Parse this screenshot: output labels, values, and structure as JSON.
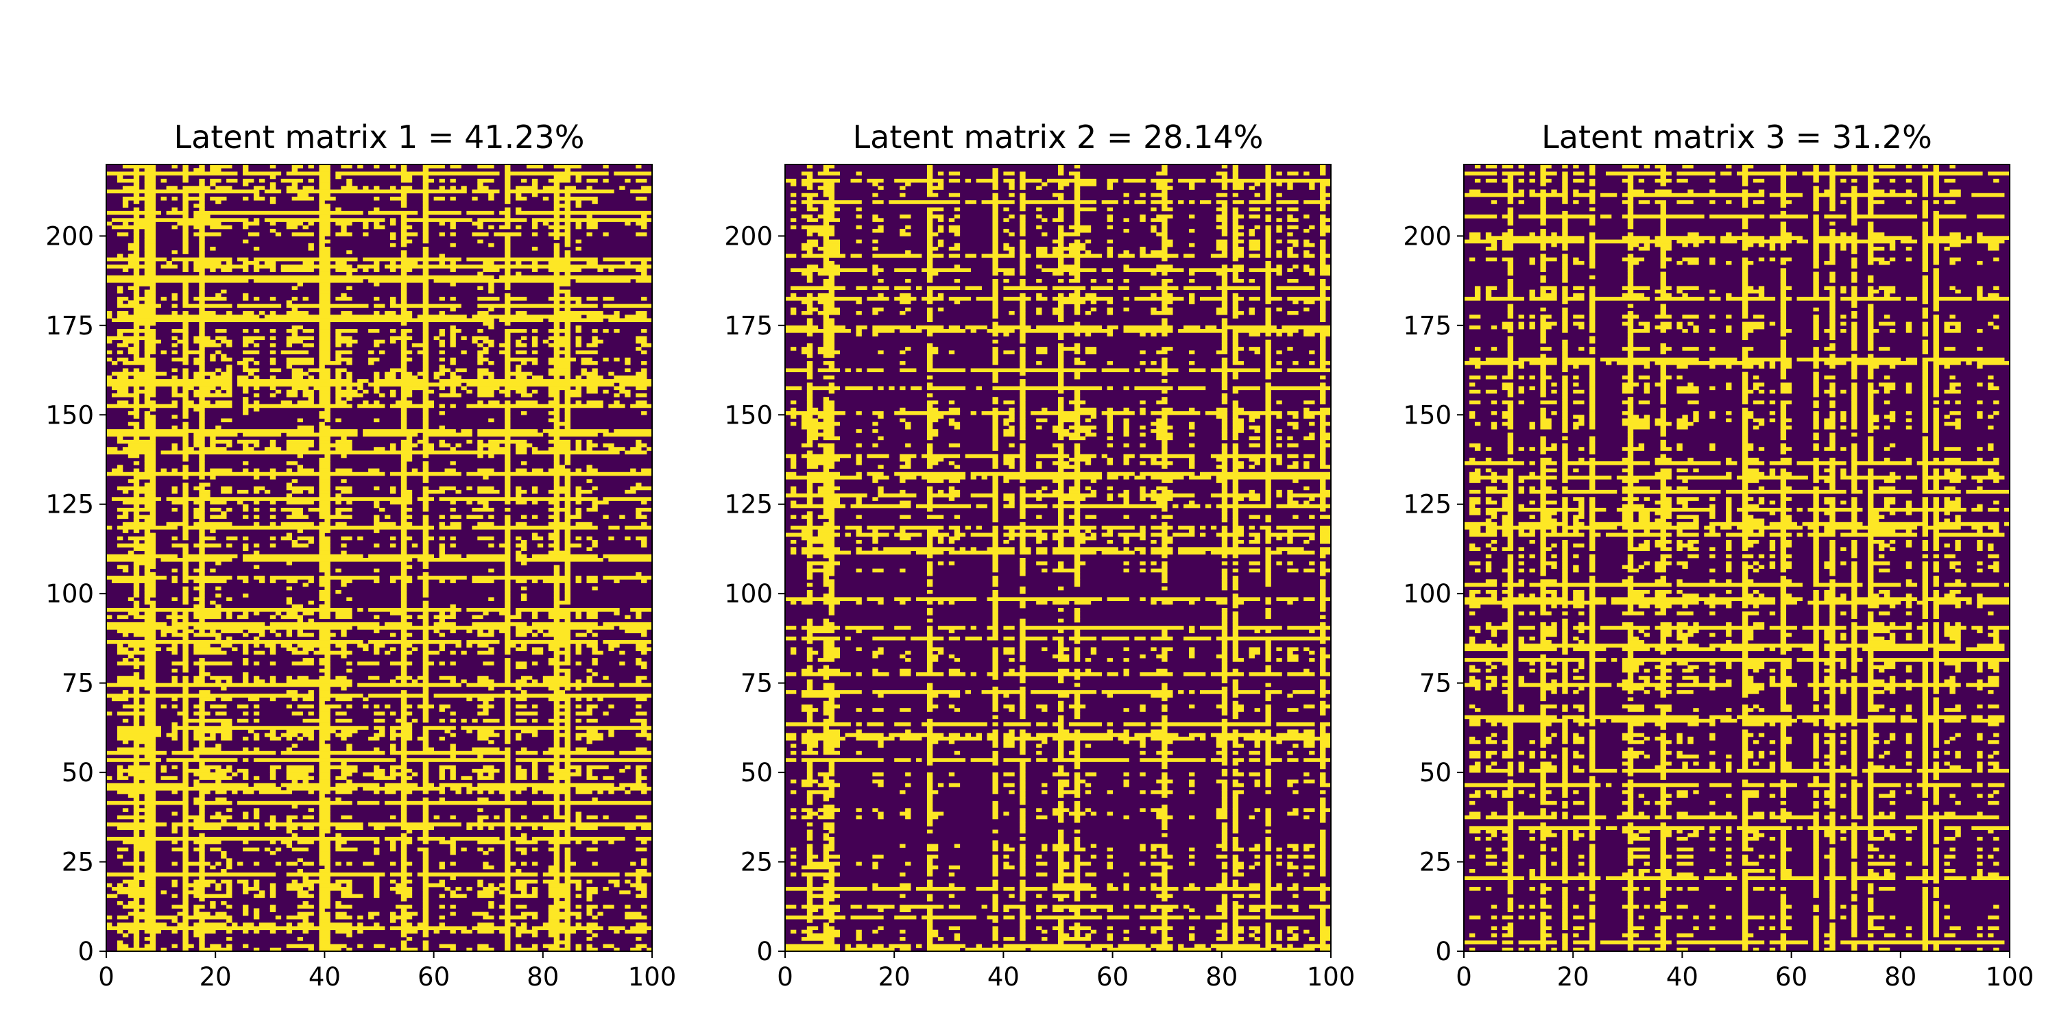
{
  "chart_data": [
    {
      "type": "heatmap",
      "title": "Latent matrix 1 = 41.23%",
      "x_range": [
        0,
        100
      ],
      "y_range": [
        0,
        220
      ],
      "x_ticks": [
        "0",
        "20",
        "40",
        "60",
        "80",
        "100"
      ],
      "y_ticks": [
        "0",
        "25",
        "50",
        "75",
        "100",
        "125",
        "150",
        "175",
        "200"
      ],
      "values": [
        0,
        1
      ],
      "colors": {
        "0": "#440154",
        "1": "#fde725"
      },
      "fill_fraction": 0.4123,
      "seed": 11
    },
    {
      "type": "heatmap",
      "title": "Latent matrix 2 = 28.14%",
      "x_range": [
        0,
        100
      ],
      "y_range": [
        0,
        220
      ],
      "x_ticks": [
        "0",
        "20",
        "40",
        "60",
        "80",
        "100"
      ],
      "y_ticks": [
        "0",
        "25",
        "50",
        "75",
        "100",
        "125",
        "150",
        "175",
        "200"
      ],
      "values": [
        0,
        1
      ],
      "colors": {
        "0": "#440154",
        "1": "#fde725"
      },
      "fill_fraction": 0.2814,
      "seed": 23
    },
    {
      "type": "heatmap",
      "title": "Latent matrix 3 = 31.2%",
      "x_range": [
        0,
        100
      ],
      "y_range": [
        0,
        220
      ],
      "x_ticks": [
        "0",
        "20",
        "40",
        "60",
        "80",
        "100"
      ],
      "y_ticks": [
        "0",
        "25",
        "50",
        "75",
        "100",
        "125",
        "150",
        "175",
        "200"
      ],
      "values": [
        0,
        1
      ],
      "colors": {
        "0": "#440154",
        "1": "#fde725"
      },
      "fill_fraction": 0.312,
      "seed": 37
    }
  ]
}
